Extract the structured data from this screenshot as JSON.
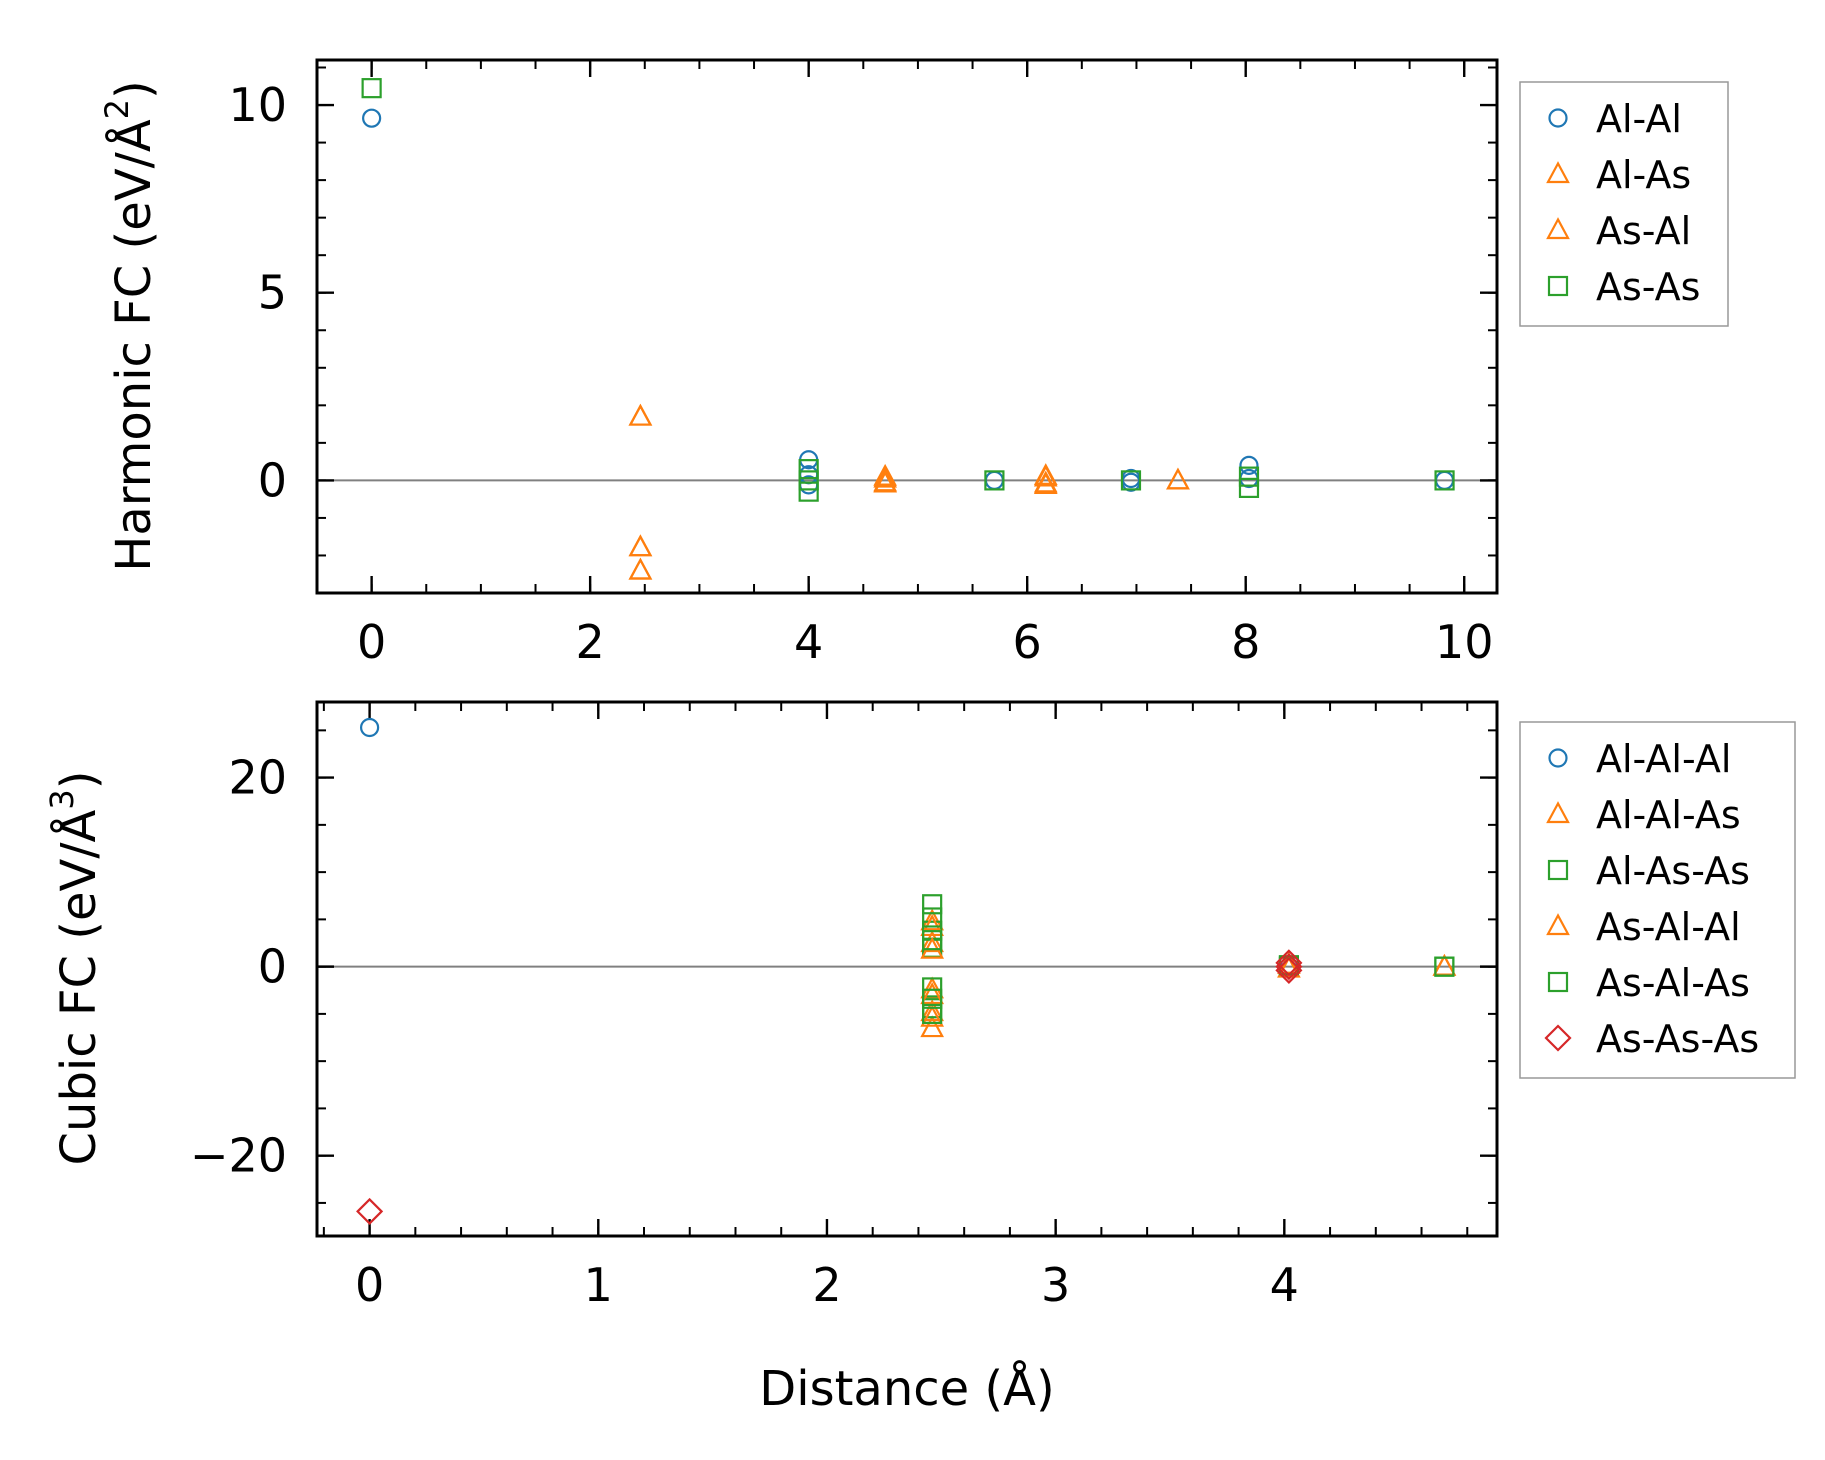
{
  "chart_data": [
    {
      "type": "scatter",
      "panel": "top",
      "title": "",
      "xlabel": "",
      "ylabel": "Harmonic FC (eV/Å²)",
      "ylabel_text": "Harmonic FC (eV/Å",
      "ylabel_sup": "2",
      "ylabel_close": ")",
      "xlim": [
        -0.5,
        10.3
      ],
      "ylim": [
        -3.0,
        11.2
      ],
      "xticks": [
        0,
        2,
        4,
        6,
        8,
        10
      ],
      "xticklabels": [
        "0",
        "2",
        "4",
        "6",
        "8",
        "10"
      ],
      "yticks": [
        0,
        5,
        10
      ],
      "yticklabels": [
        "0",
        "5",
        "10"
      ],
      "zero_line": true,
      "legend": "outside-right-top",
      "series": [
        {
          "name": "Al-Al",
          "marker": "circle",
          "color": "#1f77b4",
          "x": [
            0.0,
            4.0,
            4.0,
            4.0,
            5.7,
            6.95,
            6.95,
            8.03,
            8.03,
            9.82
          ],
          "y": [
            9.65,
            0.55,
            0.15,
            -0.12,
            0.0,
            0.05,
            -0.05,
            0.4,
            0.05,
            0.0
          ]
        },
        {
          "name": "Al-As",
          "marker": "triangle",
          "color": "#ff7f0e",
          "x": [
            2.46,
            2.46,
            2.46,
            4.7,
            4.7,
            6.17,
            6.17,
            7.38
          ],
          "y": [
            1.7,
            -1.78,
            -2.4,
            0.1,
            -0.05,
            0.12,
            -0.12,
            0.0
          ]
        },
        {
          "name": "As-Al",
          "marker": "triangle",
          "color": "#ff7f0e",
          "x": [
            2.46,
            2.46,
            2.46,
            4.7,
            4.7,
            6.17,
            6.17,
            7.38
          ],
          "y": [
            1.7,
            -1.78,
            -2.4,
            0.05,
            -0.08,
            0.08,
            -0.08,
            0.0
          ]
        },
        {
          "name": "As-As",
          "marker": "square",
          "color": "#2ca02c",
          "x": [
            0.0,
            4.0,
            4.0,
            4.0,
            5.7,
            6.95,
            8.03,
            8.03,
            9.82
          ],
          "y": [
            10.45,
            0.3,
            0.0,
            -0.3,
            0.0,
            0.0,
            -0.2,
            0.1,
            0.0
          ]
        }
      ]
    },
    {
      "type": "scatter",
      "panel": "bottom",
      "title": "",
      "xlabel": "Distance (Å)",
      "ylabel": "Cubic FC (eV/Å³)",
      "ylabel_text": "Cubic FC (eV/Å",
      "ylabel_sup": "3",
      "ylabel_close": ")",
      "xlim": [
        -0.23,
        4.93
      ],
      "ylim": [
        -28.5,
        28.0
      ],
      "xticks": [
        0,
        1,
        2,
        3,
        4
      ],
      "xticklabels": [
        "0",
        "1",
        "2",
        "3",
        "4"
      ],
      "yticks": [
        -20,
        0,
        20
      ],
      "yticklabels": [
        "−20",
        "0",
        "20"
      ],
      "zero_line": true,
      "legend": "outside-right-top",
      "series": [
        {
          "name": "Al-Al-Al",
          "marker": "circle",
          "color": "#1f77b4",
          "x": [
            0.0,
            4.02
          ],
          "y": [
            25.3,
            0.0
          ]
        },
        {
          "name": "Al-Al-As",
          "marker": "triangle",
          "color": "#ff7f0e",
          "x": [
            2.46,
            2.46,
            2.46,
            2.46,
            2.46,
            4.02,
            4.7
          ],
          "y": [
            4.8,
            2.5,
            -2.4,
            -4.8,
            -6.5,
            0.2,
            0.0
          ]
        },
        {
          "name": "Al-As-As",
          "marker": "square",
          "color": "#2ca02c",
          "x": [
            2.46,
            2.46,
            2.46,
            2.46,
            2.46,
            4.02,
            4.7
          ],
          "y": [
            6.6,
            3.8,
            2.0,
            -2.2,
            -4.4,
            0.0,
            0.0
          ]
        },
        {
          "name": "As-Al-Al",
          "marker": "triangle",
          "color": "#ff7f0e",
          "x": [
            2.46,
            2.46,
            2.46,
            2.46,
            4.02,
            4.7
          ],
          "y": [
            4.2,
            1.8,
            -3.0,
            -5.4,
            -0.2,
            0.0
          ]
        },
        {
          "name": "As-Al-As",
          "marker": "square",
          "color": "#2ca02c",
          "x": [
            2.46,
            2.46,
            2.46,
            2.46,
            4.02,
            4.7
          ],
          "y": [
            5.2,
            2.8,
            -3.4,
            -5.0,
            0.15,
            0.0
          ]
        },
        {
          "name": "As-As-As",
          "marker": "diamond",
          "color": "#d62728",
          "x": [
            0.0,
            4.02,
            4.02,
            4.02
          ],
          "y": [
            -25.9,
            0.4,
            0.0,
            -0.4
          ]
        }
      ]
    }
  ]
}
